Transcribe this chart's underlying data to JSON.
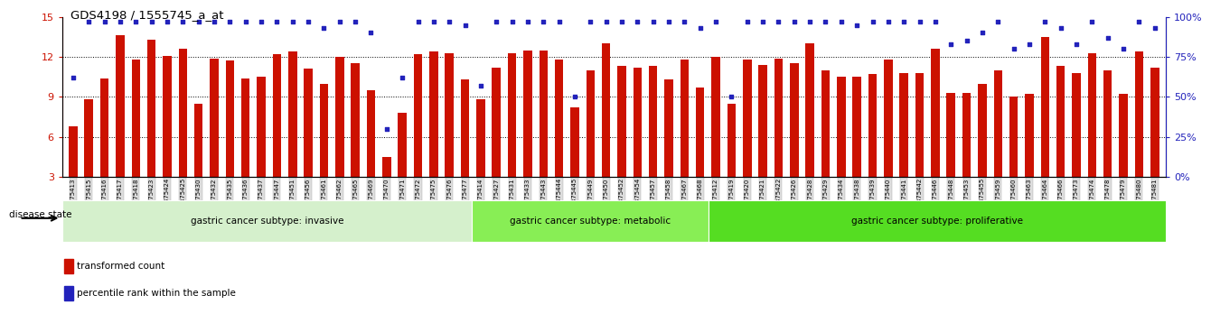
{
  "title": "GDS4198 / 1555745_a_at",
  "samples": [
    "GSM875413",
    "GSM875415",
    "GSM875416",
    "GSM875417",
    "GSM875418",
    "GSM875423",
    "GSM875424",
    "GSM875425",
    "GSM875430",
    "GSM875432",
    "GSM875435",
    "GSM875436",
    "GSM875437",
    "GSM875447",
    "GSM875451",
    "GSM875456",
    "GSM875461",
    "GSM875462",
    "GSM875465",
    "GSM875469",
    "GSM875470",
    "GSM875471",
    "GSM875472",
    "GSM875475",
    "GSM875476",
    "GSM875477",
    "GSM875414",
    "GSM875427",
    "GSM875431",
    "GSM875433",
    "GSM875443",
    "GSM875444",
    "GSM875445",
    "GSM875449",
    "GSM875450",
    "GSM875452",
    "GSM875454",
    "GSM875457",
    "GSM875458",
    "GSM875467",
    "GSM875468",
    "GSM875412",
    "GSM875419",
    "GSM875420",
    "GSM875421",
    "GSM875422",
    "GSM875426",
    "GSM875428",
    "GSM875429",
    "GSM875434",
    "GSM875438",
    "GSM875439",
    "GSM875440",
    "GSM875441",
    "GSM875442",
    "GSM875446",
    "GSM875448",
    "GSM875453",
    "GSM875455",
    "GSM875459",
    "GSM875460",
    "GSM875463",
    "GSM875464",
    "GSM875466",
    "GSM875473",
    "GSM875474",
    "GSM875478",
    "GSM875479",
    "GSM875480",
    "GSM875481"
  ],
  "bar_values": [
    6.8,
    8.8,
    10.4,
    13.6,
    11.8,
    13.3,
    12.1,
    12.6,
    8.5,
    11.9,
    11.7,
    10.4,
    10.5,
    12.2,
    12.4,
    11.1,
    10.0,
    12.0,
    11.5,
    9.5,
    4.5,
    7.8,
    12.2,
    12.4,
    12.3,
    10.3,
    8.8,
    11.2,
    12.3,
    12.5,
    12.5,
    11.8,
    8.2,
    11.0,
    13.0,
    11.3,
    11.2,
    11.3,
    10.3,
    11.8,
    9.7,
    12.0,
    8.5,
    11.8,
    11.4,
    11.9,
    11.5,
    13.0,
    11.0,
    10.5,
    10.5,
    10.7,
    11.8,
    10.8,
    10.8,
    12.6,
    9.3,
    9.3,
    10.0,
    11.0,
    9.0,
    9.2,
    13.5,
    11.3,
    10.8,
    12.3,
    11.0,
    9.2,
    12.4,
    11.2
  ],
  "percentile_values": [
    62,
    97,
    97,
    97,
    97,
    97,
    97,
    97,
    97,
    97,
    97,
    97,
    97,
    97,
    97,
    97,
    93,
    97,
    97,
    90,
    30,
    62,
    97,
    97,
    97,
    95,
    57,
    97,
    97,
    97,
    97,
    97,
    50,
    97,
    97,
    97,
    97,
    97,
    97,
    97,
    93,
    97,
    50,
    97,
    97,
    97,
    97,
    97,
    97,
    97,
    95,
    97,
    97,
    97,
    97,
    97,
    83,
    85,
    90,
    97,
    80,
    83,
    97,
    93,
    83,
    97,
    87,
    80,
    97,
    93
  ],
  "group_invasive_count": 26,
  "group_metabolic_count": 15,
  "group_proliferative_count": 29,
  "ylim_left": [
    3,
    15
  ],
  "ylim_right": [
    0,
    100
  ],
  "yticks_left": [
    3,
    6,
    9,
    12,
    15
  ],
  "yticks_right": [
    0,
    25,
    50,
    75,
    100
  ],
  "bar_color": "#cc1100",
  "dot_color": "#2222bb",
  "group_colors": [
    "#d5f0cc",
    "#88ee55",
    "#55dd22"
  ],
  "group_labels": [
    "gastric cancer subtype: invasive",
    "gastric cancer subtype: metabolic",
    "gastric cancer subtype: proliferative"
  ],
  "legend_items": [
    "transformed count",
    "percentile rank within the sample"
  ],
  "disease_state_label": "disease state",
  "bar_bottom": 3,
  "grid_lines": [
    6,
    9,
    12
  ]
}
